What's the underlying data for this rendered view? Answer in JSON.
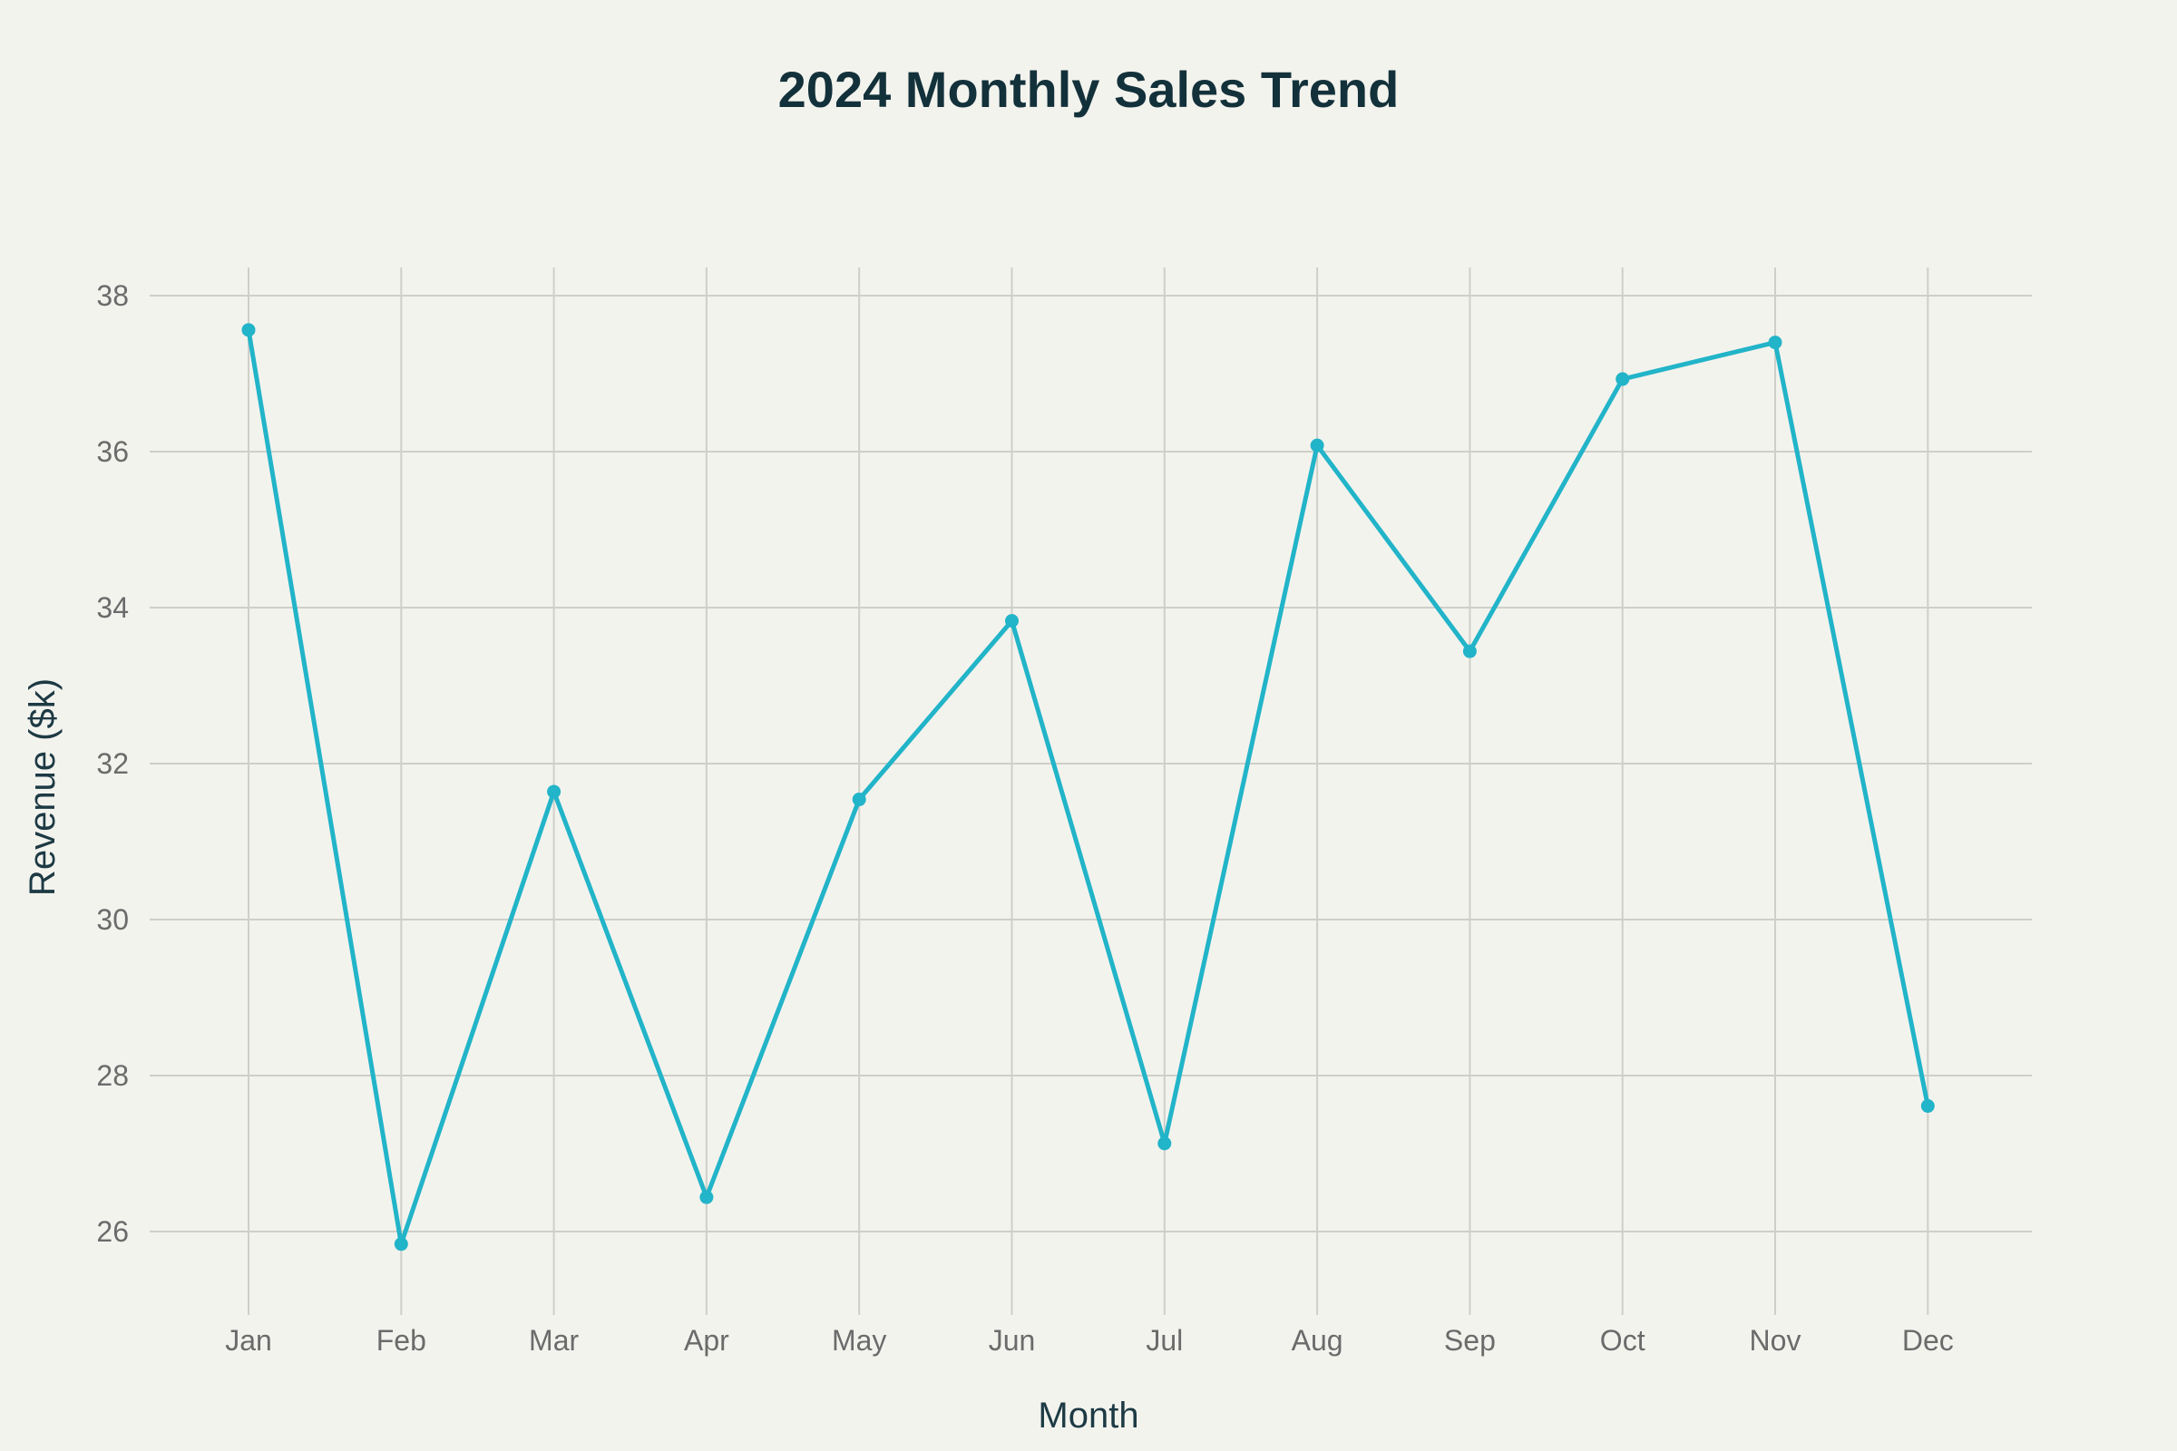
{
  "chart_data": {
    "type": "line",
    "title": "2024 Monthly Sales Trend",
    "xlabel": "Month",
    "ylabel": "Revenue ($k)",
    "categories": [
      "Jan",
      "Feb",
      "Mar",
      "Apr",
      "May",
      "Jun",
      "Jul",
      "Aug",
      "Sep",
      "Oct",
      "Nov",
      "Dec"
    ],
    "series": [
      {
        "values": [
          37.56,
          25.84,
          31.64,
          26.44,
          31.54,
          33.83,
          27.13,
          36.08,
          33.44,
          36.93,
          37.4,
          27.61
        ]
      }
    ],
    "ylim": [
      25,
      38.4
    ],
    "yticks": [
      26,
      28,
      30,
      32,
      34,
      36,
      38
    ],
    "grid": true,
    "legend": "none",
    "colors": {
      "line": "#22b4c8",
      "background": "#f3f3ee",
      "grid": "#cfcfca"
    }
  }
}
